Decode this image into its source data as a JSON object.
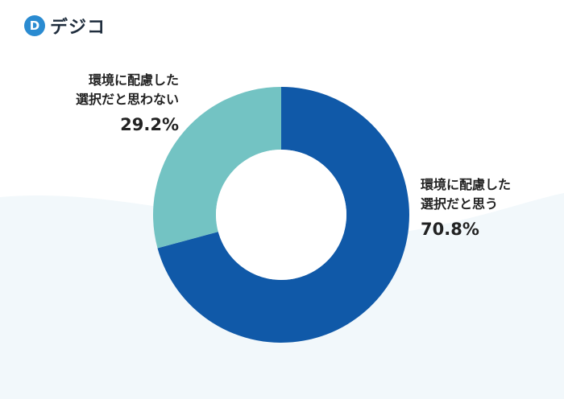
{
  "logo": {
    "mark": "D",
    "text": "デジコ",
    "color": "#2a8bd1"
  },
  "chart_data": {
    "type": "pie",
    "donut": true,
    "title": "",
    "slices": [
      {
        "label_lines": [
          "環境に配慮した",
          "選択だと思う"
        ],
        "value": 70.8,
        "value_label": "70.8%",
        "color": "#1059a8"
      },
      {
        "label_lines": [
          "環境に配慮した",
          "選択だと思わない"
        ],
        "value": 29.2,
        "value_label": "29.2%",
        "color": "#73c3c3"
      }
    ]
  }
}
